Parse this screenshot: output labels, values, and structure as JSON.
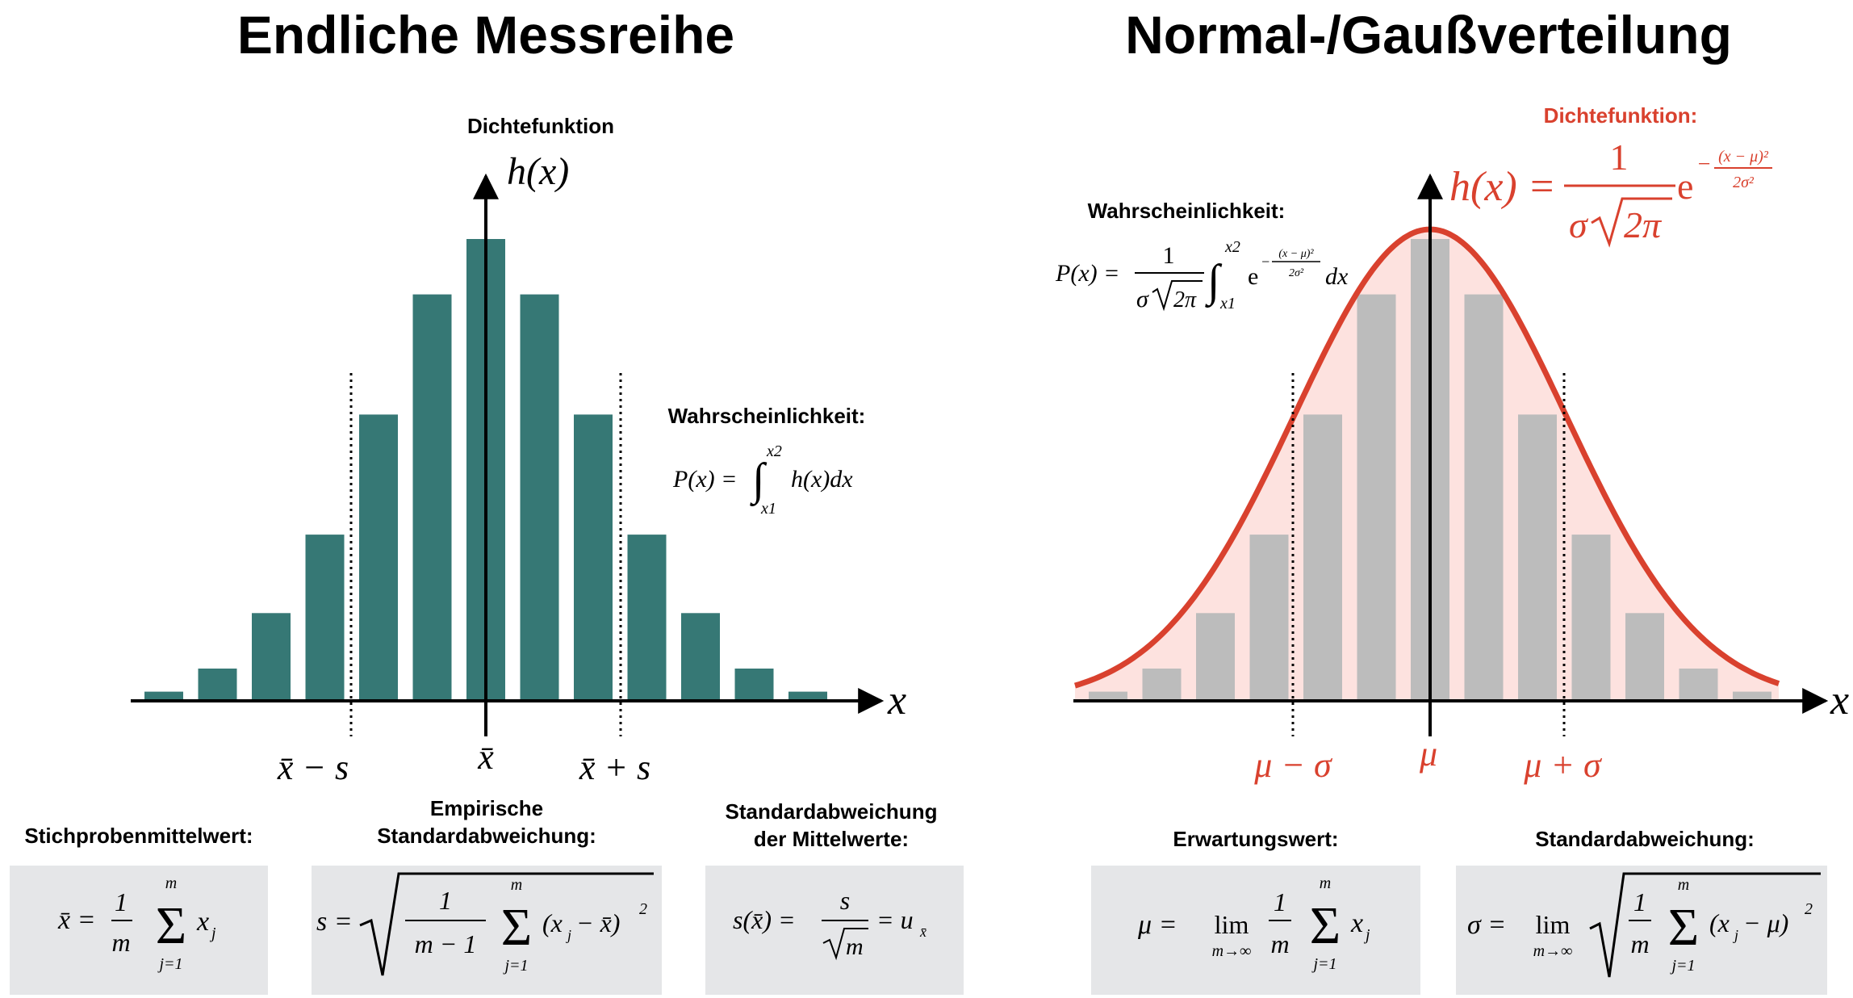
{
  "left": {
    "title": "Endliche Messreihe",
    "density_label": "Dichtefunktion",
    "y_axis_label": "h(x)",
    "x_axis_label": "x",
    "prob_label": "Wahrscheinlichkeit:",
    "prob_formula": {
      "lhs": "P(x) =",
      "lower": "x1",
      "upper": "x2",
      "integrand": "h(x)dx"
    },
    "ticks": {
      "minus": "x̄ − s",
      "mean": "x̄",
      "plus": "x̄ + s"
    },
    "bar_color": "#367875",
    "bars": [
      0.02,
      0.07,
      0.19,
      0.36,
      0.62,
      0.88,
      1.0,
      0.88,
      0.62,
      0.36,
      0.19,
      0.07,
      0.02
    ],
    "stats": [
      {
        "label": "Stichprobenmittelwert:",
        "formula": "x̄ = (1/m) Σ xⱼ"
      },
      {
        "label": "Empirische Standardabweichung:",
        "formula": "s = √( 1/(m−1) Σ (xⱼ − x̄)² )"
      },
      {
        "label": "Standardabweichung der Mittelwerte:",
        "formula": "s(x̄) = s/√m = uₓ̄"
      }
    ]
  },
  "right": {
    "title": "Normal-/Gaußverteilung",
    "density_label": "Dichtefunktion:",
    "density_formula": "h(x) = 1/(σ√2π) · e^(−(x−μ)²/2σ²)",
    "x_axis_label": "x",
    "prob_label": "Wahrscheinlichkeit:",
    "ticks": {
      "minus": "μ − σ",
      "mean": "μ",
      "plus": "μ + σ"
    },
    "curve_color": "#d9412e",
    "fill_color": "#fde2df",
    "bar_color": "#bcbcbc",
    "stats": [
      {
        "label": "Erwartungswert:",
        "formula": "μ = lim m→∞ (1/m) Σ xⱼ"
      },
      {
        "label": "Standardabweichung:",
        "formula": "σ = lim m→∞ √( (1/m) Σ (xⱼ − μ)² )"
      }
    ]
  }
}
